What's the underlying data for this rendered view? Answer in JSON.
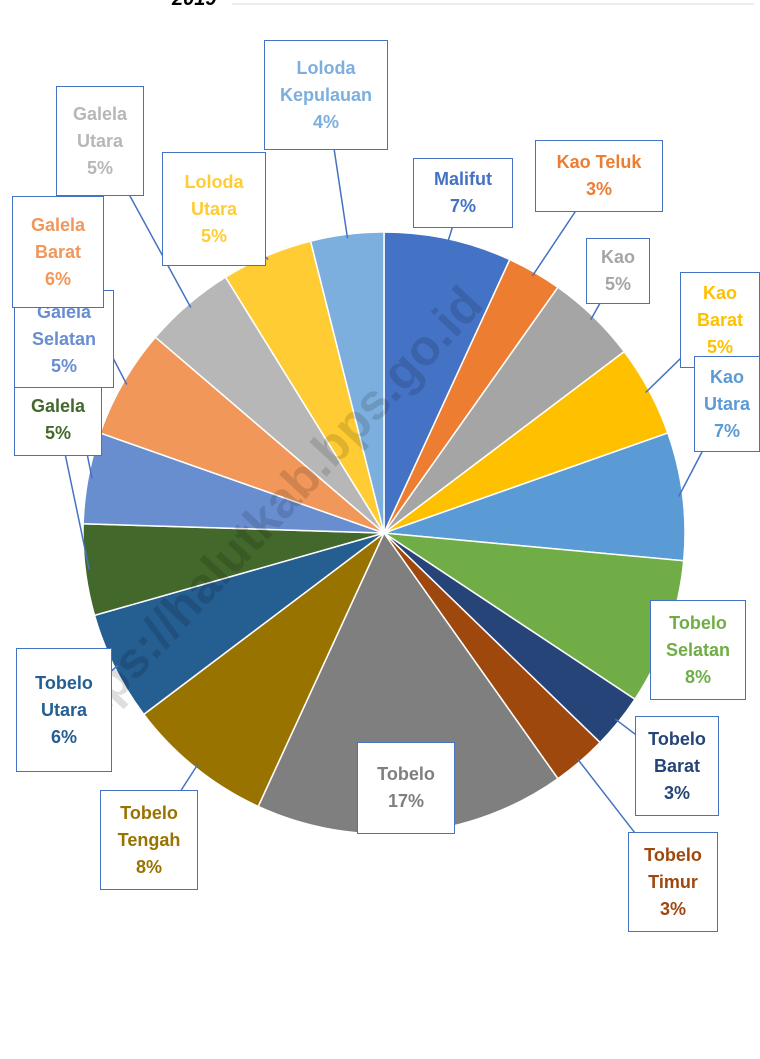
{
  "chart_data": {
    "type": "pie",
    "title": "2019",
    "watermark": "https://halutkab.bps.go.id",
    "categories": [
      "Malifut",
      "Kao Teluk",
      "Kao",
      "Kao Barat",
      "Kao Utara",
      "Tobelo Selatan",
      "Tobelo Barat",
      "Tobelo Timur",
      "Tobelo",
      "Tobelo Tengah",
      "Tobelo Utara",
      "Galela",
      "Galela Selatan",
      "Galela Barat",
      "Galela Utara",
      "Loloda Utara",
      "Loloda Kepulauan"
    ],
    "values": [
      7,
      3,
      5,
      5,
      7,
      8,
      3,
      3,
      17,
      8,
      6,
      5,
      5,
      6,
      5,
      5,
      4
    ],
    "value_labels": [
      "7%",
      "3%",
      "5%",
      "5%",
      "7%",
      "8%",
      "3%",
      "3%",
      "17%",
      "8%",
      "6%",
      "5%",
      "5%",
      "6%",
      "5%",
      "5%",
      "4%"
    ],
    "colors": [
      "#4472c4",
      "#ed7d31",
      "#a5a5a5",
      "#ffc000",
      "#5b9bd5",
      "#70ad47",
      "#264478",
      "#9e480e",
      "#7f7f7f",
      "#997300",
      "#255e91",
      "#43682b",
      "#698ed0",
      "#f1975a",
      "#b7b7b7",
      "#ffcd33",
      "#7cafdd"
    ]
  }
}
